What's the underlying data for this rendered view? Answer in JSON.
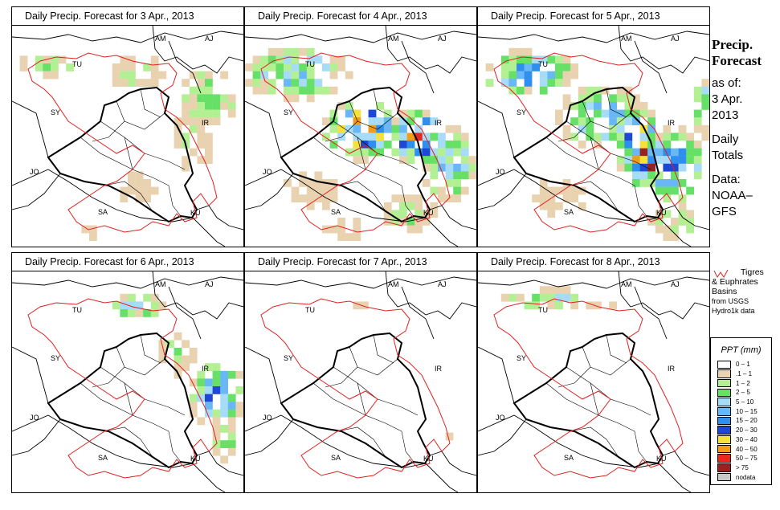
{
  "panels": [
    {
      "title": "Daily Precip. Forecast for  3 Apr., 2013",
      "intensity": "light"
    },
    {
      "title": "Daily Precip. Forecast for  4 Apr., 2013",
      "intensity": "moderate"
    },
    {
      "title": "Daily Precip. Forecast for  5 Apr., 2013",
      "intensity": "heavy"
    },
    {
      "title": "Daily Precip. Forecast for  6 Apr., 2013",
      "intensity": "light-east"
    },
    {
      "title": "Daily Precip. Forecast for  7 Apr., 2013",
      "intensity": "none"
    },
    {
      "title": "Daily Precip. Forecast for  8 Apr., 2013",
      "intensity": "north-only"
    }
  ],
  "country_labels": {
    "am": "AM",
    "aj": "AJ",
    "tu": "TU",
    "sy": "SY",
    "ir": "IR",
    "jo": "JO",
    "sa": "SA",
    "ku": "KU"
  },
  "sidebar": {
    "title_line1": "Precip.",
    "title_line2": "Forecast",
    "asof": "as of:",
    "date_line1": "3 Apr.",
    "date_line2": "2013",
    "daily1": "Daily",
    "daily2": "Totals",
    "data1": "Data:",
    "data2": "NOAA–",
    "data3": "GFS"
  },
  "basin_key": {
    "line1": "Tigres",
    "line2": "& Euphrates",
    "line3": "Basins",
    "line4": "from USGS",
    "line5": "Hydro1k data"
  },
  "legend": {
    "title": "PPT (mm)",
    "items": [
      {
        "label": "0 – 1",
        "color": "#ffffff"
      },
      {
        "label": ".1 – 1",
        "color": "#e9d2b0"
      },
      {
        "label": "1 – 2",
        "color": "#b3ef93"
      },
      {
        "label": "2 – 5",
        "color": "#66e066"
      },
      {
        "label": "5 – 10",
        "color": "#a6dcf8"
      },
      {
        "label": "10 – 15",
        "color": "#6ab7f5"
      },
      {
        "label": "15 – 20",
        "color": "#2e8fee"
      },
      {
        "label": "20 – 30",
        "color": "#1f47d6"
      },
      {
        "label": "30 – 40",
        "color": "#f6e03a"
      },
      {
        "label": "40 – 50",
        "color": "#f49b1a"
      },
      {
        "label": "50 – 75",
        "color": "#e82a1e"
      },
      {
        "label": "> 75",
        "color": "#962222"
      },
      {
        "label": "nodata",
        "color": "#c8c8c8"
      }
    ]
  },
  "colors": {
    "basin": "#e02020",
    "border": "#000000"
  }
}
